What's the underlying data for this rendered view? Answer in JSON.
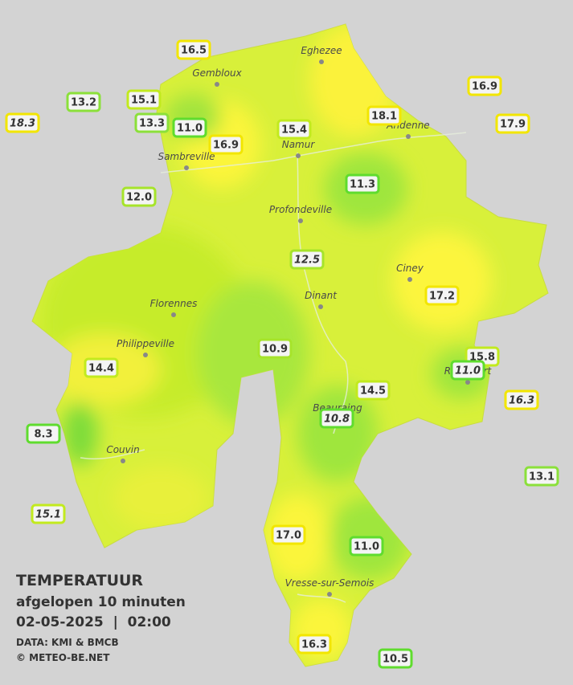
{
  "map": {
    "towns": [
      "Eghezee",
      "Gembloux",
      "Andenne",
      "Namur",
      "Sambreville",
      "Profondeville",
      "Ciney",
      "Dinant",
      "Florennes",
      "Philippeville",
      "Rochefort",
      "Beauraing",
      "Couvin",
      "Vresse-sur-Semois"
    ],
    "stations": [
      {
        "text": "16.5",
        "border": "#f2e600",
        "italic": false
      },
      {
        "text": "13.2",
        "border": "#8be03a",
        "italic": false
      },
      {
        "text": "15.1",
        "border": "#c2ea1e",
        "italic": false
      },
      {
        "text": "18.3",
        "border": "#f2e600",
        "italic": true
      },
      {
        "text": "13.3",
        "border": "#8be03a",
        "italic": false
      },
      {
        "text": "11.0",
        "border": "#5fdc2e",
        "italic": false
      },
      {
        "text": "16.9",
        "border": "#f2e600",
        "italic": false
      },
      {
        "text": "15.4",
        "border": "#c2ea1e",
        "italic": false
      },
      {
        "text": "18.1",
        "border": "#f2e600",
        "italic": false
      },
      {
        "text": "16.9",
        "border": "#f2e600",
        "italic": false
      },
      {
        "text": "17.9",
        "border": "#f2e600",
        "italic": false
      },
      {
        "text": "11.3",
        "border": "#5fdc2e",
        "italic": false
      },
      {
        "text": "12.0",
        "border": "#a6e42a",
        "italic": false
      },
      {
        "text": "12.5",
        "border": "#a6e42a",
        "italic": true
      },
      {
        "text": "17.2",
        "border": "#f2e600",
        "italic": false
      },
      {
        "text": "10.9",
        "border": "#a6e42a",
        "italic": false
      },
      {
        "text": "14.4",
        "border": "#c2ea1e",
        "italic": false
      },
      {
        "text": "15.8",
        "border": "#c2ea1e",
        "italic": false
      },
      {
        "text": "11.0",
        "border": "#5fdc2e",
        "italic": true
      },
      {
        "text": "16.3",
        "border": "#f2e600",
        "italic": true
      },
      {
        "text": "14.5",
        "border": "#c2ea1e",
        "italic": false
      },
      {
        "text": "10.8",
        "border": "#5fdc2e",
        "italic": true
      },
      {
        "text": "8.3",
        "border": "#5fdc2e",
        "italic": false
      },
      {
        "text": "13.1",
        "border": "#8be03a",
        "italic": false
      },
      {
        "text": "15.1",
        "border": "#c2ea1e",
        "italic": true
      },
      {
        "text": "17.0",
        "border": "#f2e600",
        "italic": false
      },
      {
        "text": "11.0",
        "border": "#5fdc2e",
        "italic": false
      },
      {
        "text": "16.3",
        "border": "#f2e600",
        "italic": false
      },
      {
        "text": "10.5",
        "border": "#5fdc2e",
        "italic": false
      }
    ],
    "legend": {
      "title": "TEMPERATUUR",
      "subtitle": "afgelopen 10 minuten",
      "datetime": "02-05-2025  |  02:00",
      "source": "DATA: KMI & BMCB",
      "copyright": "© METEO-BE.NET"
    }
  }
}
